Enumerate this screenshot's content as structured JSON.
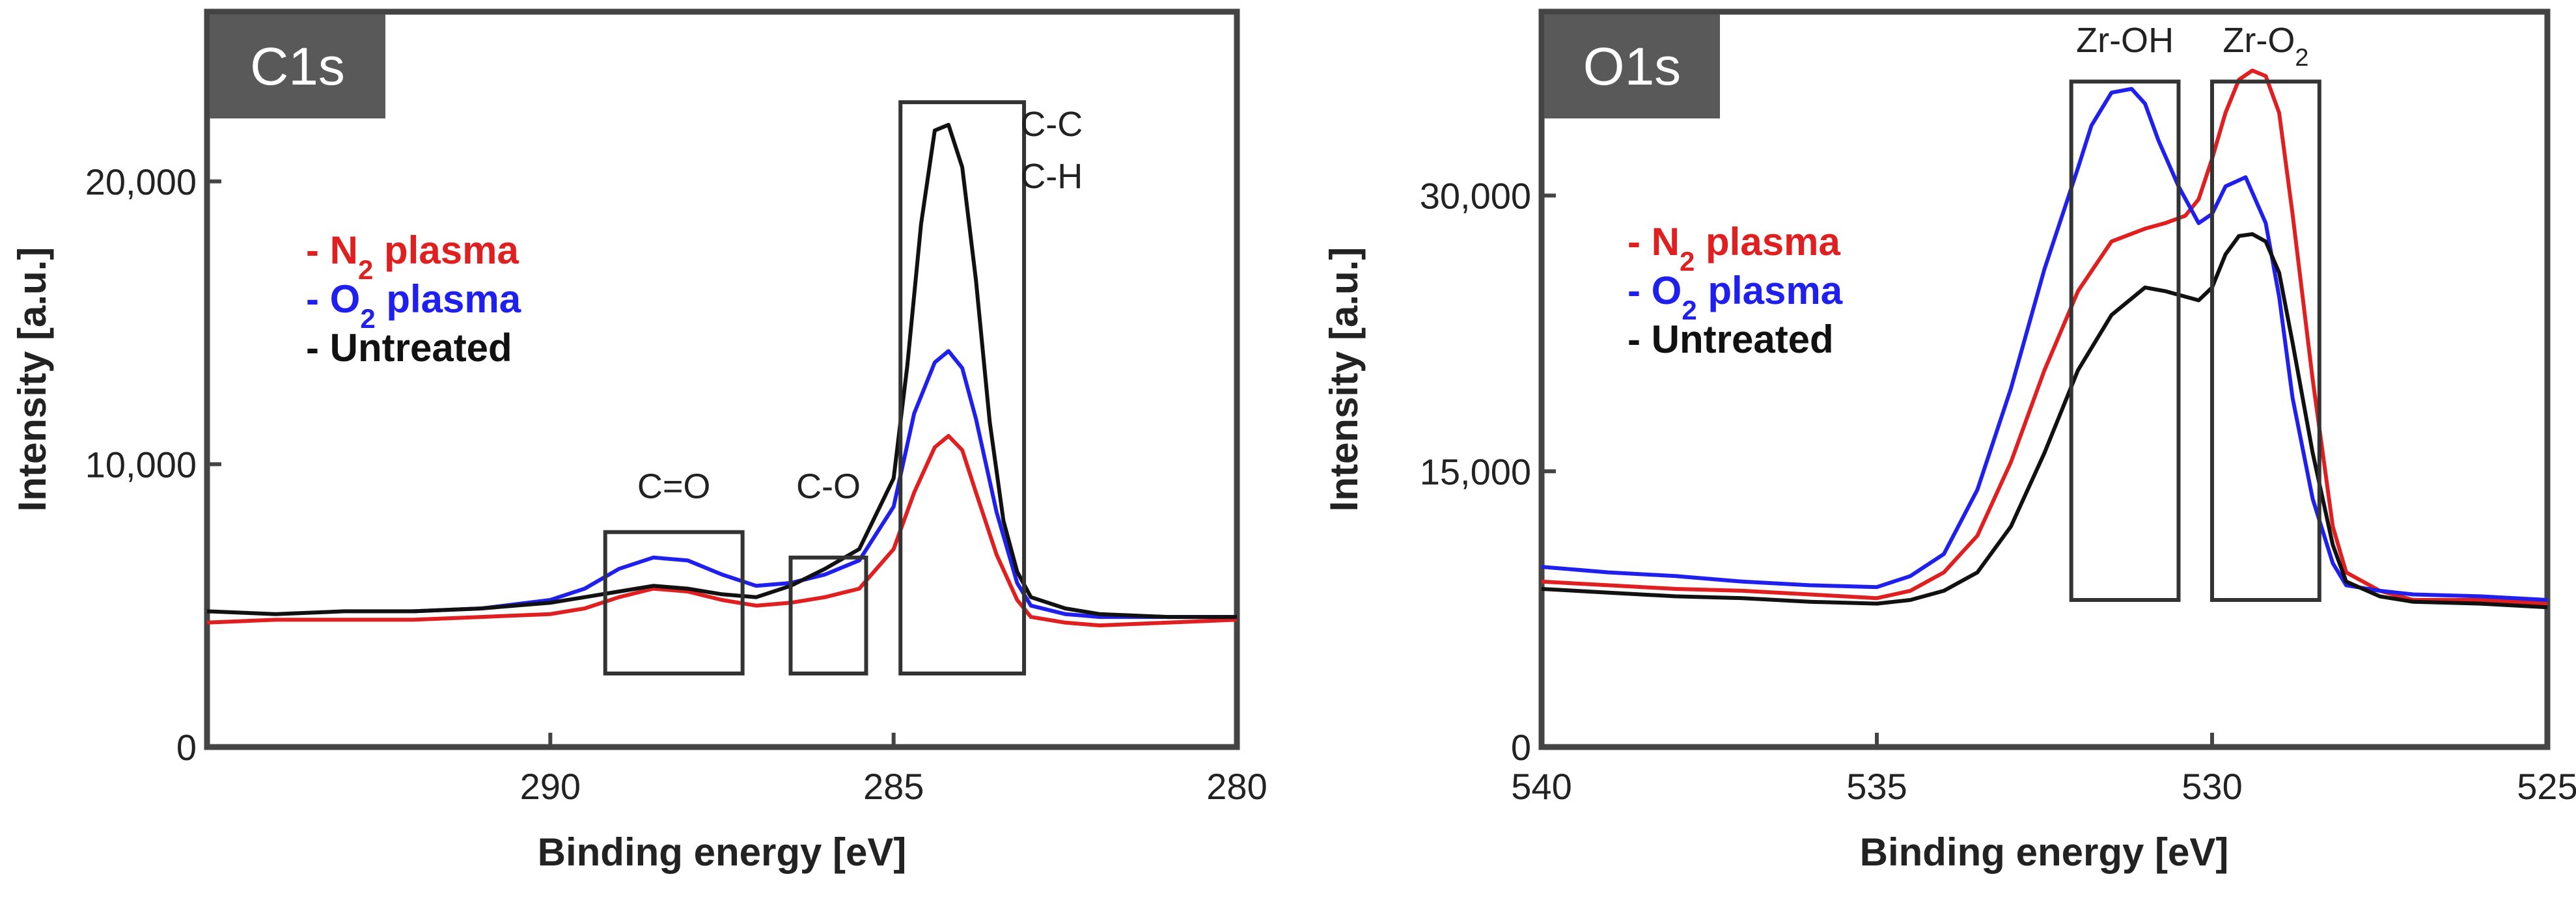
{
  "chart_data": [
    {
      "type": "line",
      "panel_label": "C1s",
      "xlabel": "Binding energy [eV]",
      "ylabel": "Intensity [a.u.]",
      "xlim": [
        295,
        280
      ],
      "ylim": [
        0,
        26000
      ],
      "x_ticks": [
        {
          "value": 290,
          "label": "290"
        },
        {
          "value": 285,
          "label": "285"
        },
        {
          "value": 280,
          "label": "280"
        }
      ],
      "y_ticks": [
        {
          "value": 0,
          "label": "0"
        },
        {
          "value": 10000,
          "label": "10,000"
        },
        {
          "value": 20000,
          "label": "20,000"
        }
      ],
      "legend": [
        {
          "prefix": "- ",
          "main": "N",
          "sub": "2",
          "rest": " plasma",
          "color": "#e02020"
        },
        {
          "prefix": "- ",
          "main": "O",
          "sub": "2",
          "rest": " plasma",
          "color": "#2020ee"
        },
        {
          "prefix": "- ",
          "main": "Untreated",
          "sub": "",
          "rest": "",
          "color": "#111111"
        }
      ],
      "annotations": [
        {
          "x0": 289.2,
          "x1": 287.2,
          "y0": 2600,
          "y1": 7600,
          "lines": [
            {
              "main": "C=O",
              "sub": ""
            }
          ],
          "label_x": 288.2,
          "label_y": 8800
        },
        {
          "x0": 286.5,
          "x1": 285.4,
          "y0": 2600,
          "y1": 6700,
          "lines": [
            {
              "main": "C-O",
              "sub": ""
            }
          ],
          "label_x": 285.95,
          "label_y": 8800
        },
        {
          "x0": 284.9,
          "x1": 283.1,
          "y0": 2600,
          "y1": 22800,
          "lines": [
            {
              "main": "C-C",
              "sub": ""
            },
            {
              "main": "C-H",
              "sub": ""
            }
          ],
          "label_x": 282.7,
          "label_y": 21600,
          "anchor": "middle"
        }
      ],
      "series": [
        {
          "name": "N2 plasma",
          "color": "#e02020",
          "x": [
            295,
            294,
            293,
            292,
            291,
            290,
            289.5,
            289,
            288.5,
            288,
            287.5,
            287,
            286.5,
            286,
            285.5,
            285,
            284.7,
            284.4,
            284.2,
            284,
            283.8,
            283.5,
            283.2,
            283,
            282.5,
            282,
            281,
            280
          ],
          "y": [
            4400,
            4500,
            4500,
            4500,
            4600,
            4700,
            4900,
            5300,
            5600,
            5500,
            5200,
            5000,
            5100,
            5300,
            5600,
            7000,
            9000,
            10600,
            11000,
            10500,
            9000,
            6800,
            5200,
            4600,
            4400,
            4300,
            4400,
            4500
          ]
        },
        {
          "name": "O2 plasma",
          "color": "#2020ee",
          "x": [
            292,
            291,
            290,
            289.5,
            289,
            288.5,
            288,
            287.5,
            287,
            286.5,
            286,
            285.5,
            285,
            284.7,
            284.4,
            284.2,
            284,
            283.8,
            283.5,
            283.2,
            283,
            282.5,
            282,
            281,
            280
          ],
          "y": [
            4800,
            4900,
            5200,
            5600,
            6300,
            6700,
            6600,
            6100,
            5700,
            5800,
            6100,
            6600,
            8500,
            11800,
            13600,
            14000,
            13400,
            11600,
            8300,
            5800,
            5000,
            4700,
            4600,
            4600,
            4600
          ]
        },
        {
          "name": "Untreated",
          "color": "#111111",
          "x": [
            295,
            294,
            293,
            292,
            291,
            290,
            289.5,
            289,
            288.5,
            288,
            287.5,
            287,
            286.5,
            286,
            285.5,
            285,
            284.8,
            284.6,
            284.4,
            284.2,
            284,
            283.8,
            283.6,
            283.4,
            283.2,
            283,
            282.5,
            282,
            281,
            280
          ],
          "y": [
            4800,
            4700,
            4800,
            4800,
            4900,
            5100,
            5300,
            5500,
            5700,
            5600,
            5400,
            5300,
            5700,
            6300,
            7000,
            9500,
            13500,
            18500,
            21800,
            22000,
            20500,
            16500,
            11500,
            8000,
            6200,
            5300,
            4900,
            4700,
            4600,
            4600
          ]
        }
      ]
    },
    {
      "type": "line",
      "panel_label": "O1s",
      "xlabel": "Binding energy [eV]",
      "ylabel": "Intensity [a.u.]",
      "xlim": [
        540,
        525
      ],
      "ylim": [
        0,
        40000
      ],
      "x_ticks": [
        {
          "value": 540,
          "label": "540"
        },
        {
          "value": 535,
          "label": "535"
        },
        {
          "value": 530,
          "label": "530"
        },
        {
          "value": 525,
          "label": "525"
        }
      ],
      "y_ticks": [
        {
          "value": 0,
          "label": "0"
        },
        {
          "value": 15000,
          "label": "15,000"
        },
        {
          "value": 30000,
          "label": "30,000"
        }
      ],
      "legend": [
        {
          "prefix": "- ",
          "main": "N",
          "sub": "2",
          "rest": " plasma",
          "color": "#e02020"
        },
        {
          "prefix": "- ",
          "main": "O",
          "sub": "2",
          "rest": " plasma",
          "color": "#2020ee"
        },
        {
          "prefix": "- ",
          "main": "Untreated",
          "sub": "",
          "rest": "",
          "color": "#111111"
        }
      ],
      "annotations": [
        {
          "x0": 532.1,
          "x1": 530.5,
          "y0": 8000,
          "y1": 36200,
          "lines": [
            {
              "main": "Zr-OH",
              "sub": ""
            }
          ],
          "label_x": 531.3,
          "label_y": 37800
        },
        {
          "x0": 530.0,
          "x1": 528.4,
          "y0": 8000,
          "y1": 36200,
          "lines": [
            {
              "main": "Zr-O",
              "sub": "2"
            }
          ],
          "label_x": 529.2,
          "label_y": 37800
        }
      ],
      "series": [
        {
          "name": "N2 plasma",
          "color": "#e02020",
          "x": [
            540,
            539,
            538,
            537,
            536,
            535,
            534.5,
            534,
            533.5,
            533,
            532.5,
            532,
            531.5,
            531,
            530.7,
            530.4,
            530.2,
            530,
            529.8,
            529.6,
            529.4,
            529.2,
            529,
            528.8,
            528.5,
            528.2,
            528,
            527.5,
            527,
            526,
            525
          ],
          "y": [
            9000,
            8800,
            8600,
            8500,
            8300,
            8100,
            8500,
            9500,
            11500,
            15500,
            20500,
            24800,
            27500,
            28200,
            28500,
            28900,
            29800,
            32000,
            34500,
            36300,
            36800,
            36500,
            34500,
            29000,
            20000,
            12000,
            9500,
            8500,
            8000,
            8000,
            7800
          ]
        },
        {
          "name": "O2 plasma",
          "color": "#2020ee",
          "x": [
            540,
            539,
            538,
            537,
            536,
            535,
            534.5,
            534,
            533.5,
            533,
            532.5,
            532,
            531.8,
            531.5,
            531.2,
            531,
            530.8,
            530.5,
            530.2,
            530,
            529.8,
            529.5,
            529.2,
            529,
            528.8,
            528.5,
            528.2,
            528,
            527.5,
            527,
            526,
            525
          ],
          "y": [
            9800,
            9500,
            9300,
            9000,
            8800,
            8700,
            9300,
            10500,
            14000,
            19500,
            26000,
            31500,
            33800,
            35600,
            35800,
            35000,
            33000,
            30500,
            28500,
            29000,
            30500,
            31000,
            28500,
            24500,
            19000,
            13500,
            10000,
            8800,
            8500,
            8300,
            8200,
            8000
          ]
        },
        {
          "name": "Untreated",
          "color": "#111111",
          "x": [
            540,
            539,
            538,
            537,
            536,
            535,
            534.5,
            534,
            533.5,
            533,
            532.5,
            532,
            531.5,
            531,
            530.7,
            530.4,
            530.2,
            530,
            529.8,
            529.6,
            529.4,
            529.2,
            529,
            528.8,
            528.5,
            528.2,
            528,
            527.5,
            527,
            526,
            525
          ],
          "y": [
            8600,
            8400,
            8200,
            8100,
            7900,
            7800,
            8000,
            8500,
            9500,
            12000,
            16000,
            20500,
            23500,
            25000,
            24800,
            24500,
            24300,
            25000,
            26800,
            27800,
            27900,
            27500,
            25800,
            22000,
            16000,
            11000,
            9000,
            8200,
            7900,
            7800,
            7600
          ]
        }
      ]
    }
  ]
}
